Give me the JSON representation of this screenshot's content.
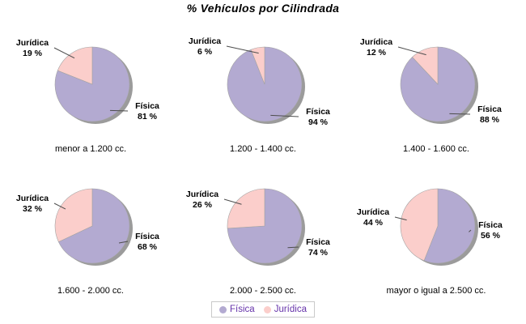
{
  "chart_data": {
    "type": "pie",
    "title": "% Vehículos por Cilindrada",
    "legend": [
      "Física",
      "Jurídica"
    ],
    "legend_position": "bottom-center",
    "value_suffix": " %",
    "grid": "off",
    "pies": [
      {
        "category": "menor a 1.200 cc.",
        "slices": [
          {
            "name": "Física",
            "value": 81,
            "display": "81 %"
          },
          {
            "name": "Jurídica",
            "value": 19,
            "display": "19 %"
          }
        ]
      },
      {
        "category": "1.200 - 1.400 cc.",
        "slices": [
          {
            "name": "Física",
            "value": 94,
            "display": "94 %"
          },
          {
            "name": "Jurídica",
            "value": 6,
            "display": "6 %"
          }
        ]
      },
      {
        "category": "1.400 - 1.600 cc.",
        "slices": [
          {
            "name": "Física",
            "value": 88,
            "display": "88 %"
          },
          {
            "name": "Jurídica",
            "value": 12,
            "display": "12 %"
          }
        ]
      },
      {
        "category": "1.600 - 2.000 cc.",
        "slices": [
          {
            "name": "Física",
            "value": 68,
            "display": "68 %"
          },
          {
            "name": "Jurídica",
            "value": 32,
            "display": "32 %"
          }
        ]
      },
      {
        "category": "2.000 - 2.500 cc.",
        "slices": [
          {
            "name": "Física",
            "value": 74,
            "display": "74 %"
          },
          {
            "name": "Jurídica",
            "value": 26,
            "display": "26 %"
          }
        ]
      },
      {
        "category": "mayor o igual a 2.500 cc.",
        "slices": [
          {
            "name": "Física",
            "value": 56,
            "display": "56 %"
          },
          {
            "name": "Jurídica",
            "value": 44,
            "display": "44 %"
          }
        ]
      }
    ],
    "colors": {
      "fisica": "#b3aad1",
      "juridica": "#fbcecb",
      "pie_shadow": "#9b9b9b",
      "slice_border": "#a3a3a3",
      "leader_line": "#4d4d4d",
      "legend_text": "#6633aa",
      "legend_border": "#c9c9c9",
      "text": "#000000",
      "background": "#ffffff"
    }
  }
}
